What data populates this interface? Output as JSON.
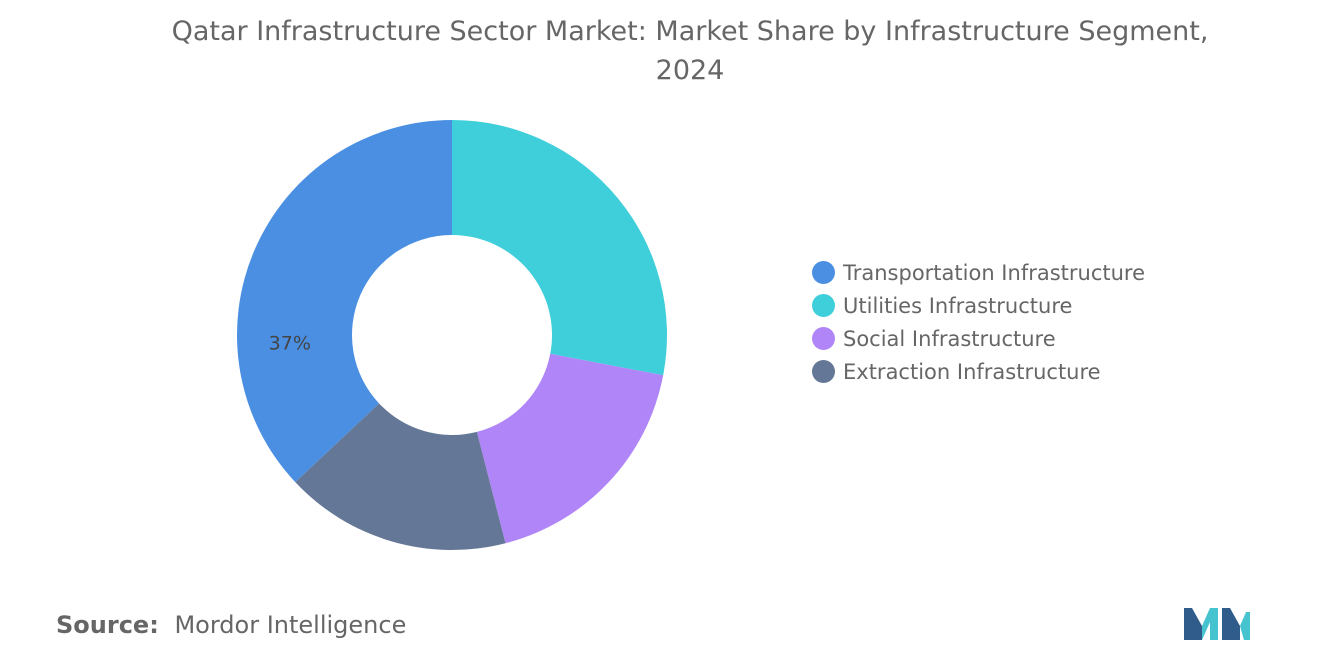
{
  "colors": {
    "text": "#666666",
    "transportation": "#4a8fe2",
    "utilities": "#3ecfdb",
    "social": "#b085f7",
    "extraction": "#647796"
  },
  "chart_data": {
    "type": "pie",
    "donut": true,
    "title": "Qatar Infrastructure Sector Market: Market Share by Infrastructure Segment, 2024",
    "legend_position": "right",
    "series": [
      {
        "name": "Transportation Infrastructure",
        "value": 37,
        "label": "37%",
        "color": "#4a8fe2"
      },
      {
        "name": "Utilities Infrastructure",
        "value": 28,
        "label": "",
        "color": "#3ecfdb"
      },
      {
        "name": "Social Infrastructure",
        "value": 18,
        "label": "",
        "color": "#b085f7"
      },
      {
        "name": "Extraction Infrastructure",
        "value": 17,
        "label": "",
        "color": "#647796"
      }
    ]
  },
  "source": {
    "label": "Source:",
    "text": "Mordor Intelligence"
  },
  "logo": {
    "icon": "mordor-intelligence-logo",
    "colors": [
      "#2f5c8a",
      "#45c3cf"
    ]
  }
}
